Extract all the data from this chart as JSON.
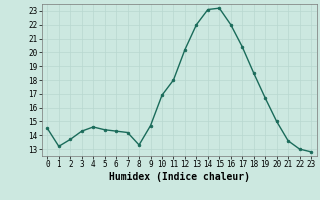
{
  "x": [
    0,
    1,
    2,
    3,
    4,
    5,
    6,
    7,
    8,
    9,
    10,
    11,
    12,
    13,
    14,
    15,
    16,
    17,
    18,
    19,
    20,
    21,
    22,
    23
  ],
  "y": [
    14.5,
    13.2,
    13.7,
    14.3,
    14.6,
    14.4,
    14.3,
    14.2,
    13.3,
    14.7,
    16.9,
    18.0,
    20.2,
    22.0,
    23.1,
    23.2,
    22.0,
    20.4,
    18.5,
    16.7,
    15.0,
    13.6,
    13.0,
    12.8
  ],
  "line_color": "#1a6b5a",
  "marker": "o",
  "markersize": 2,
  "linewidth": 1.0,
  "xlabel": "Humidex (Indice chaleur)",
  "ylim": [
    12.5,
    23.5
  ],
  "xlim": [
    -0.5,
    23.5
  ],
  "yticks": [
    13,
    14,
    15,
    16,
    17,
    18,
    19,
    20,
    21,
    22,
    23
  ],
  "xticks": [
    0,
    1,
    2,
    3,
    4,
    5,
    6,
    7,
    8,
    9,
    10,
    11,
    12,
    13,
    14,
    15,
    16,
    17,
    18,
    19,
    20,
    21,
    22,
    23
  ],
  "bg_color": "#cce8e0",
  "grid_color": "#b8d8d0",
  "tick_fontsize": 5.5,
  "xlabel_fontsize": 7
}
